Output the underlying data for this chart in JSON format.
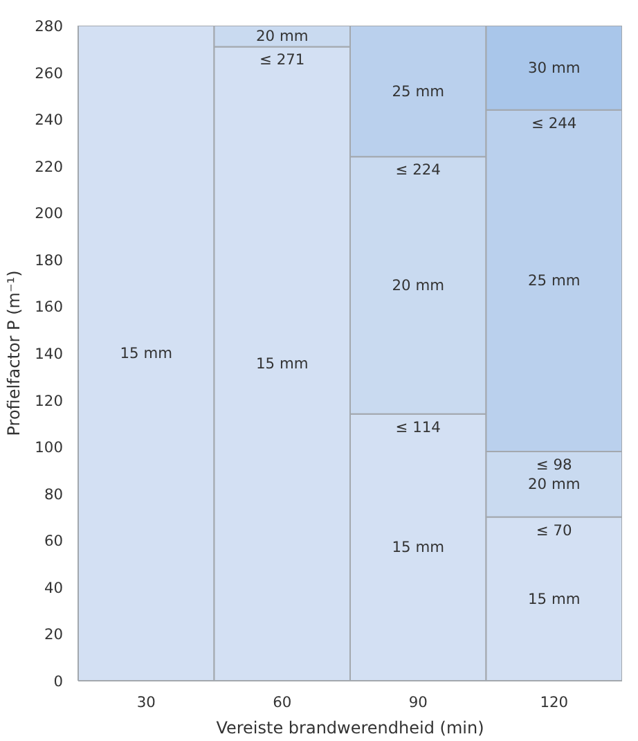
{
  "chart_data": {
    "type": "bar",
    "stacked": true,
    "xlabel": "Vereiste brandwerendheid (min)",
    "ylabel": "Profielfactor P (m⁻¹)",
    "categories": [
      "30",
      "60",
      "90",
      "120"
    ],
    "series": [
      {
        "name": "15 mm",
        "color": "#d3e0f3",
        "values": [
          280,
          271,
          114,
          70
        ]
      },
      {
        "name": "20 mm",
        "color": "#c9daf0",
        "values": [
          null,
          9,
          110,
          28
        ]
      },
      {
        "name": "25 mm",
        "color": "#bad0ed",
        "values": [
          null,
          null,
          56,
          146
        ]
      },
      {
        "name": "30 mm",
        "color": "#a9c6ea",
        "values": [
          null,
          null,
          null,
          36
        ]
      }
    ],
    "ylim": [
      0,
      280
    ],
    "yticks": [
      0,
      20,
      40,
      60,
      80,
      100,
      120,
      140,
      160,
      180,
      200,
      220,
      240,
      260,
      280
    ],
    "annotations": [
      {
        "text": "≤ 271",
        "x": "60",
        "y": 271
      },
      {
        "text": "≤ 224",
        "x": "90",
        "y": 224
      },
      {
        "text": "≤ 114",
        "x": "90",
        "y": 114
      },
      {
        "text": "≤ 244",
        "x": "120",
        "y": 244
      },
      {
        "text": "≤ 98",
        "x": "120",
        "y": 98
      },
      {
        "text": "≤ 70",
        "x": "120",
        "y": 70
      }
    ]
  }
}
